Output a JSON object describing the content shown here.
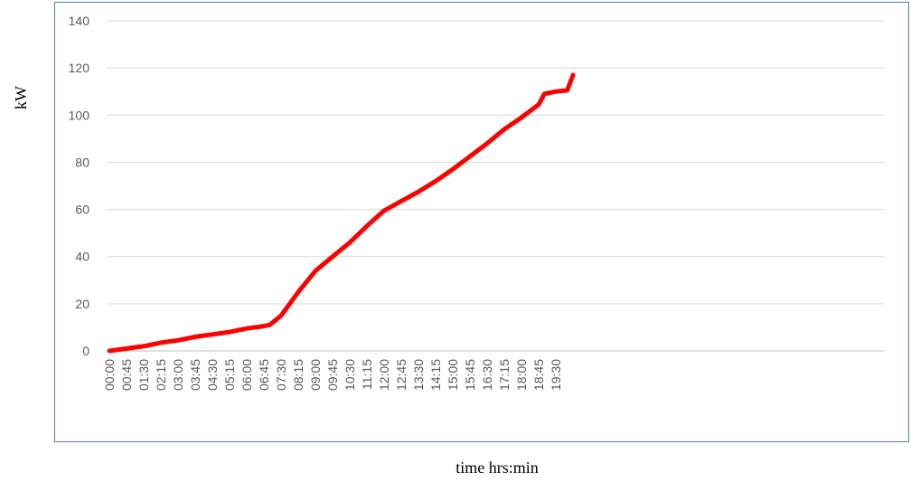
{
  "chart_data": {
    "type": "line",
    "title": "",
    "xlabel": "time hrs:min",
    "ylabel": "kW",
    "ylim": [
      0,
      140
    ],
    "yticks": [
      0,
      20,
      40,
      60,
      80,
      100,
      120,
      140
    ],
    "grid": true,
    "legend": "none",
    "x_tick_labels": [
      "00:00",
      "00:45",
      "01:30",
      "02:15",
      "03:00",
      "03:45",
      "04:30",
      "05:15",
      "06:00",
      "06:45",
      "07:30",
      "08:15",
      "09:00",
      "09:45",
      "10:30",
      "11:15",
      "12:00",
      "12:45",
      "13:30",
      "14:15",
      "15:00",
      "15:45",
      "16:30",
      "17:15",
      "18:00",
      "18:45",
      "19:30"
    ],
    "series": [
      {
        "color": "#ff0000",
        "points": [
          {
            "x": "00:00",
            "y": 0
          },
          {
            "x": "00:45",
            "y": 1
          },
          {
            "x": "01:30",
            "y": 2
          },
          {
            "x": "02:15",
            "y": 3.5
          },
          {
            "x": "03:00",
            "y": 4.5
          },
          {
            "x": "03:45",
            "y": 6
          },
          {
            "x": "04:30",
            "y": 7
          },
          {
            "x": "05:15",
            "y": 8
          },
          {
            "x": "06:00",
            "y": 9.5
          },
          {
            "x": "06:45",
            "y": 10.5
          },
          {
            "x": "07:00",
            "y": 11
          },
          {
            "x": "07:30",
            "y": 15
          },
          {
            "x": "08:15",
            "y": 25
          },
          {
            "x": "09:00",
            "y": 34
          },
          {
            "x": "09:45",
            "y": 40
          },
          {
            "x": "10:30",
            "y": 46
          },
          {
            "x": "11:15",
            "y": 53
          },
          {
            "x": "12:00",
            "y": 59.5
          },
          {
            "x": "12:45",
            "y": 63.5
          },
          {
            "x": "13:30",
            "y": 67.5
          },
          {
            "x": "14:15",
            "y": 72
          },
          {
            "x": "15:00",
            "y": 77
          },
          {
            "x": "15:45",
            "y": 82.5
          },
          {
            "x": "16:30",
            "y": 88
          },
          {
            "x": "17:15",
            "y": 94
          },
          {
            "x": "18:00",
            "y": 99
          },
          {
            "x": "18:45",
            "y": 104.5
          },
          {
            "x": "19:00",
            "y": 109
          },
          {
            "x": "19:30",
            "y": 110
          },
          {
            "x": "20:00",
            "y": 110.5
          },
          {
            "x": "20:15",
            "y": 117
          }
        ]
      }
    ]
  }
}
